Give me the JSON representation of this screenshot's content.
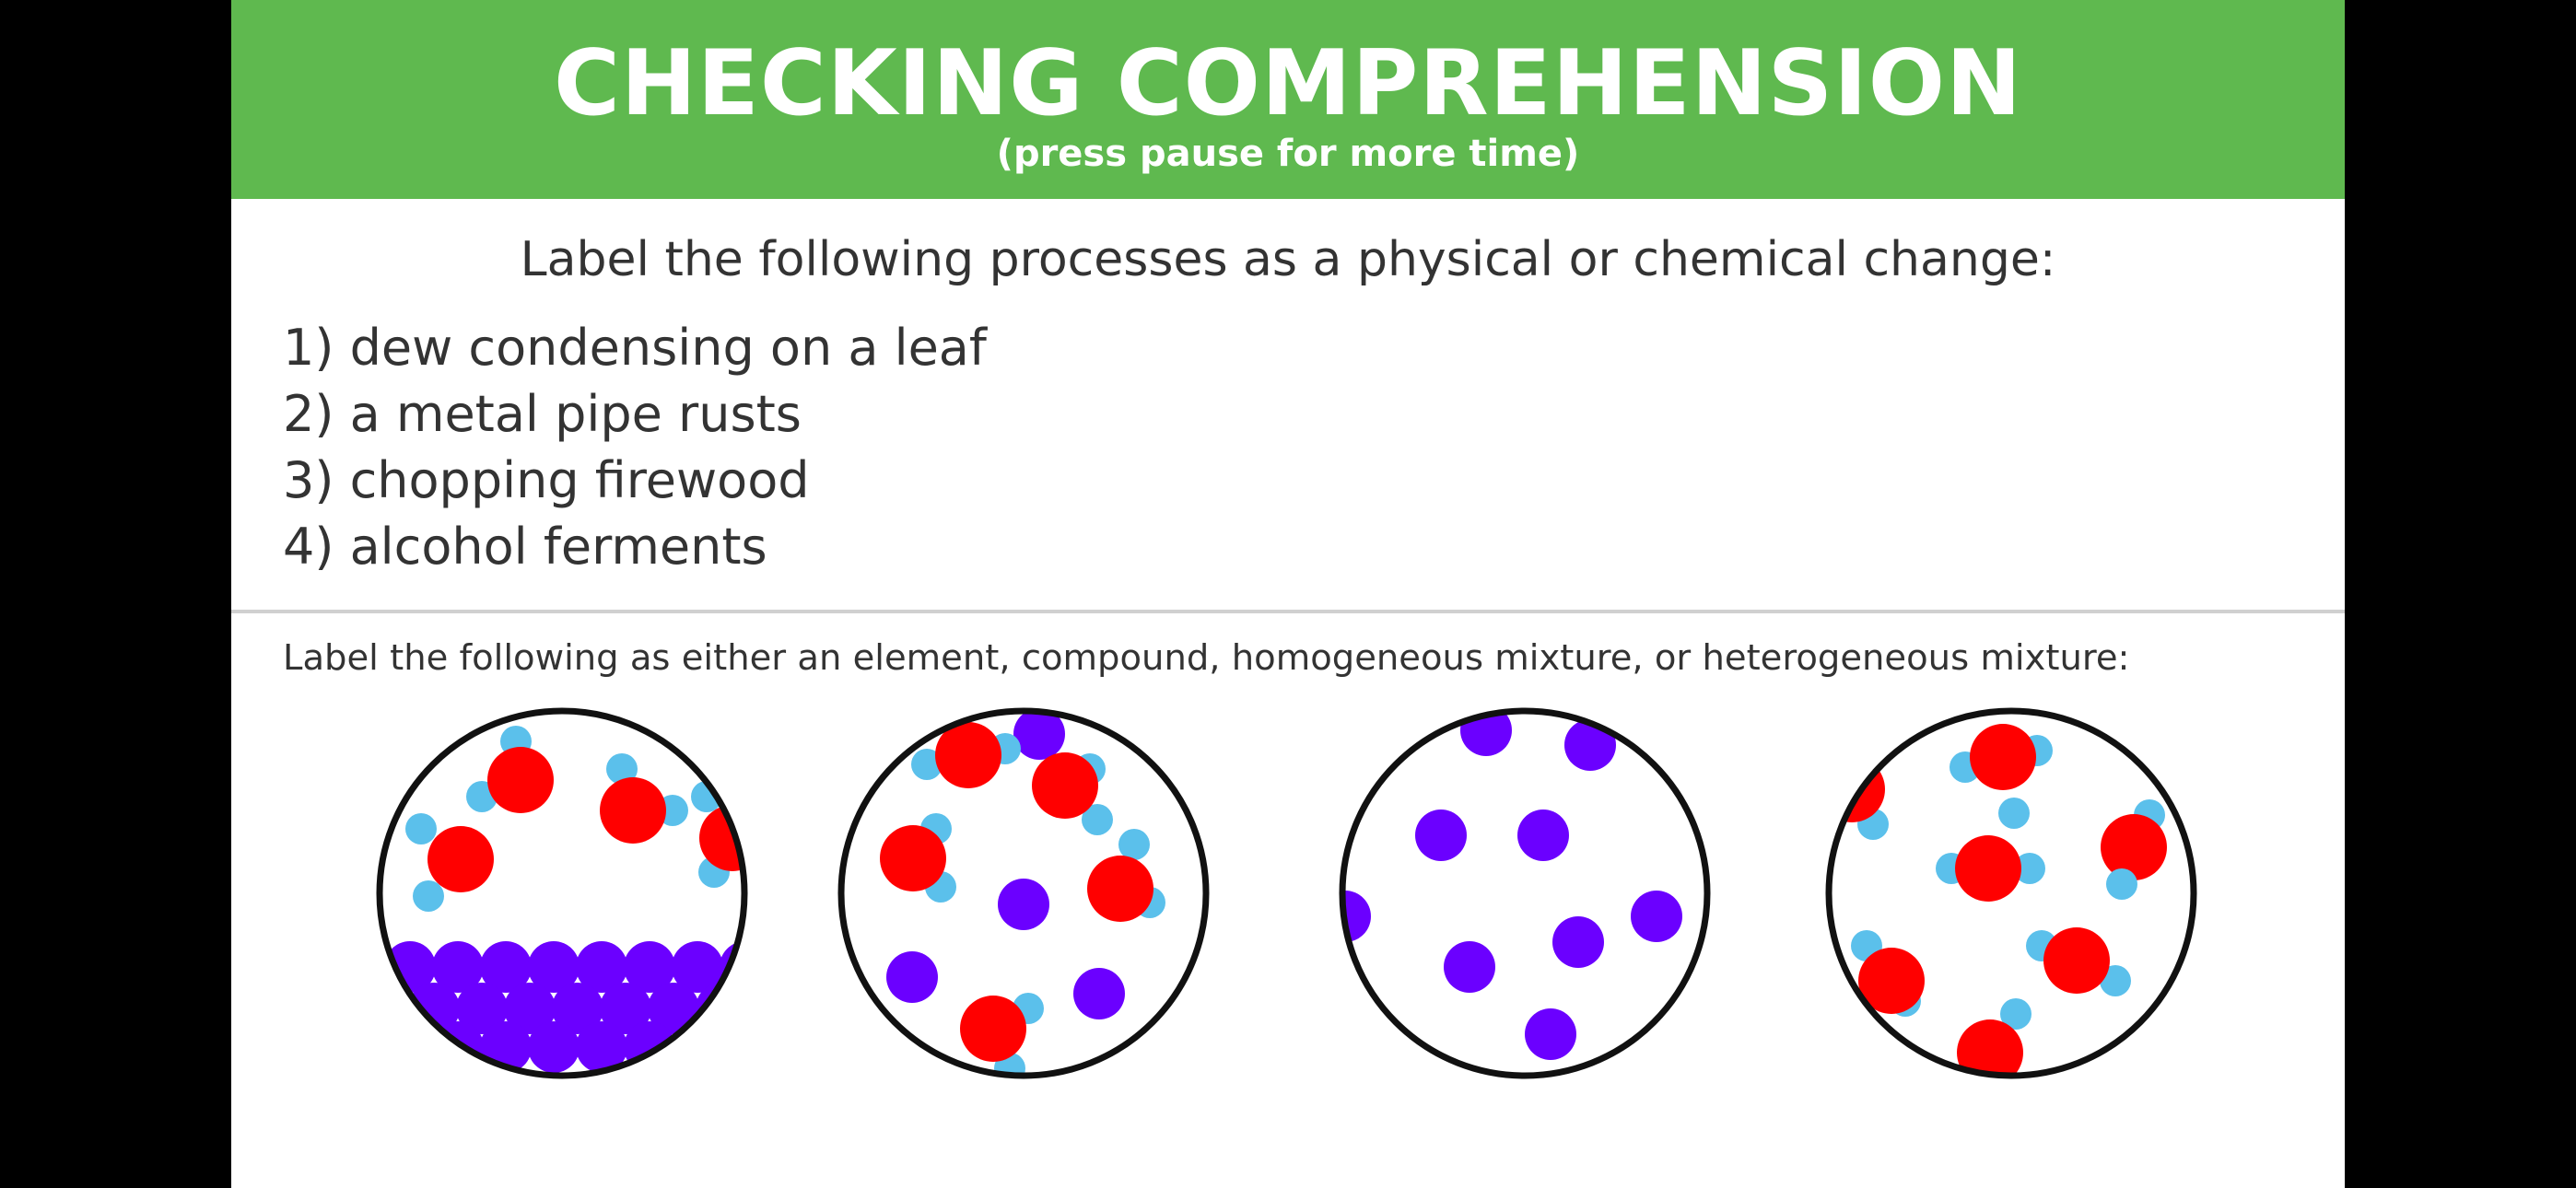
{
  "banner": {
    "title": "CHECKING COMPREHENSION",
    "subtitle": "(press pause for more time)",
    "color": "#5fb94f"
  },
  "question1": {
    "prompt": "Label the following processes as a physical or chemical change:",
    "items": [
      "1) dew condensing on a leaf",
      "2) a metal pipe rusts",
      "3) chopping firewood",
      "4) alcohol ferments"
    ]
  },
  "question2": {
    "prompt": "Label the following as either an element, compound, homogeneous mixture, or heterogeneous mixture:"
  },
  "colors": {
    "red_atom": "#ff0000",
    "blue_atom": "#5bc0eb",
    "purple_atom": "#6b00ff"
  }
}
